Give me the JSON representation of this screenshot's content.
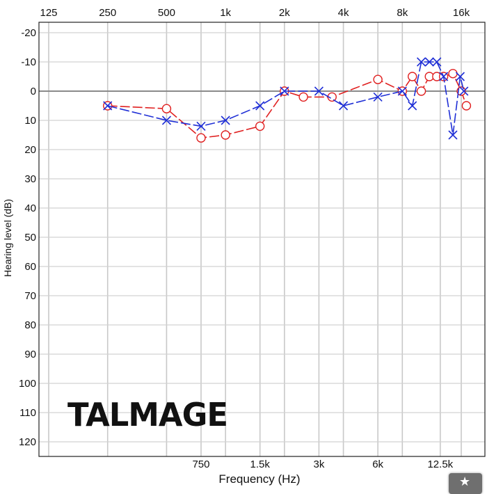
{
  "chart_data": {
    "type": "line",
    "xscale": "log",
    "xlabel": "Frequency (Hz)",
    "ylabel": "Hearing level (dB)",
    "x_ticks_top": [
      {
        "value": 125,
        "label": "125"
      },
      {
        "value": 250,
        "label": "250"
      },
      {
        "value": 500,
        "label": "500"
      },
      {
        "value": 1000,
        "label": "1k"
      },
      {
        "value": 2000,
        "label": "2k"
      },
      {
        "value": 4000,
        "label": "4k"
      },
      {
        "value": 8000,
        "label": "8k"
      },
      {
        "value": 16000,
        "label": "16k"
      }
    ],
    "x_ticks_bottom": [
      {
        "value": 750,
        "label": "750"
      },
      {
        "value": 1500,
        "label": "1.5k"
      },
      {
        "value": 3000,
        "label": "3k"
      },
      {
        "value": 6000,
        "label": "6k"
      },
      {
        "value": 12500,
        "label": "12.5k"
      }
    ],
    "y_ticks": [
      {
        "value": -20,
        "label": "-20"
      },
      {
        "value": -10,
        "label": "-10"
      },
      {
        "value": 0,
        "label": "0"
      },
      {
        "value": 10,
        "label": "10"
      },
      {
        "value": 20,
        "label": "20"
      },
      {
        "value": 30,
        "label": "30"
      },
      {
        "value": 40,
        "label": "40"
      },
      {
        "value": 50,
        "label": "50"
      },
      {
        "value": 60,
        "label": "60"
      },
      {
        "value": 70,
        "label": "70"
      },
      {
        "value": 80,
        "label": "80"
      },
      {
        "value": 90,
        "label": "90"
      },
      {
        "value": 100,
        "label": "100"
      },
      {
        "value": 110,
        "label": "110"
      },
      {
        "value": 120,
        "label": "120"
      }
    ],
    "xlim": [
      100,
      20000
    ],
    "ylim": [
      -25,
      125
    ],
    "y_inverted": true,
    "grid": true,
    "reference_line": 0,
    "series": [
      {
        "color": "#e02020",
        "marker": "circle",
        "dash": "dash",
        "points": [
          [
            250,
            5
          ],
          [
            500,
            6
          ],
          [
            750,
            16
          ],
          [
            1000,
            15
          ],
          [
            1500,
            12
          ],
          [
            2000,
            0
          ],
          [
            2500,
            2
          ],
          [
            3500,
            2
          ],
          [
            6000,
            -4
          ],
          [
            8000,
            0
          ],
          [
            9000,
            -5
          ],
          [
            10000,
            0
          ],
          [
            11000,
            -5
          ],
          [
            12000,
            -5
          ],
          [
            13000,
            -5
          ],
          [
            14500,
            -6
          ],
          [
            16000,
            0
          ],
          [
            17000,
            5
          ]
        ]
      },
      {
        "color": "#1f2fd6",
        "marker": "x",
        "dash": "dash",
        "points": [
          [
            250,
            5
          ],
          [
            500,
            10
          ],
          [
            750,
            12
          ],
          [
            1000,
            10
          ],
          [
            1500,
            5
          ],
          [
            2000,
            0
          ],
          [
            3000,
            0
          ],
          [
            4000,
            5
          ],
          [
            6000,
            2
          ],
          [
            8000,
            0
          ],
          [
            9000,
            5
          ],
          [
            10000,
            -10
          ],
          [
            11000,
            -10
          ],
          [
            12000,
            -10
          ],
          [
            13000,
            -5
          ],
          [
            14500,
            15
          ],
          [
            15800,
            -5
          ],
          [
            16500,
            0
          ]
        ]
      }
    ]
  },
  "watermark": "TALMAGE",
  "corner_button_icon": "star-icon"
}
